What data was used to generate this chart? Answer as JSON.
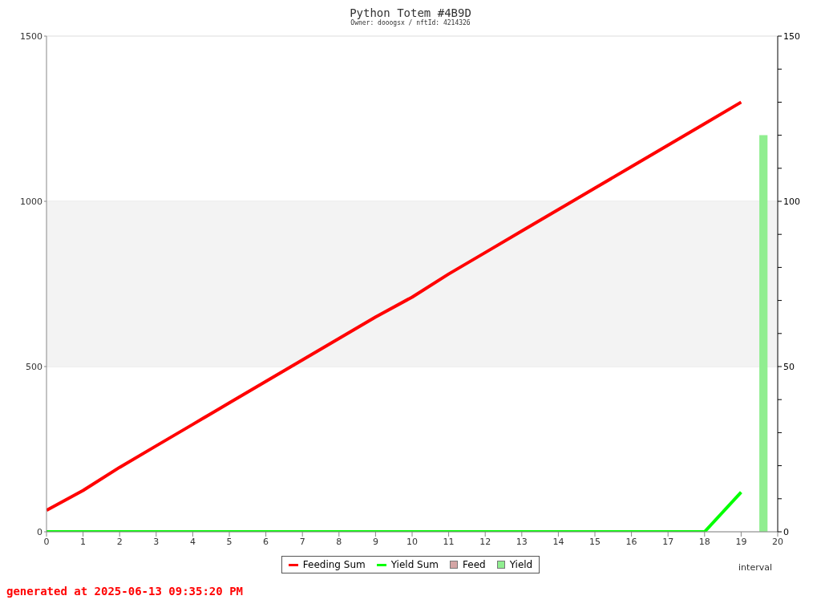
{
  "chart_data": {
    "type": "line",
    "title": "Python Totem #4B9D",
    "subtitle": "Owner: dooogsx / nftId: 4214326",
    "xlabel": "interval",
    "annotations": [
      "generated at 2025-06-13 09:35:20 PM"
    ],
    "x": [
      0,
      1,
      2,
      3,
      4,
      5,
      6,
      7,
      8,
      9,
      10,
      11,
      12,
      13,
      14,
      15,
      16,
      17,
      18,
      19
    ],
    "series": [
      {
        "name": "Feeding Sum",
        "color": "#ff0000",
        "values": [
          65,
          125,
          195,
          260,
          325,
          390,
          455,
          520,
          585,
          650,
          710,
          780,
          845,
          910,
          975,
          1040,
          1105,
          1170,
          1235,
          1300
        ]
      },
      {
        "name": "Yield Sum",
        "color": "#00ff00",
        "values": [
          0,
          0,
          0,
          0,
          0,
          0,
          0,
          0,
          0,
          0,
          0,
          0,
          0,
          0,
          0,
          0,
          0,
          0,
          0,
          120
        ]
      },
      {
        "name": "Feed",
        "type": "bar",
        "axis": "y2",
        "color": "#d4a5a5",
        "values": [
          null,
          null,
          null,
          null,
          null,
          null,
          null,
          null,
          null,
          null,
          null,
          null,
          null,
          null,
          null,
          null,
          null,
          null,
          null,
          null
        ]
      },
      {
        "name": "Yield",
        "type": "bar",
        "axis": "y2",
        "color": "#90ee90",
        "x": [
          19.5
        ],
        "values": [
          120
        ]
      }
    ],
    "xlim": [
      0,
      20
    ],
    "xticks": [
      0,
      1,
      2,
      3,
      4,
      5,
      6,
      7,
      8,
      9,
      10,
      11,
      12,
      13,
      14,
      15,
      16,
      17,
      18,
      19,
      20
    ],
    "ylim": [
      0,
      1500
    ],
    "yticks": [
      0,
      500,
      1000,
      1500
    ],
    "y2lim": [
      0,
      150
    ],
    "y2ticks": [
      0,
      {
        "value": 10,
        "label": null
      },
      {
        "value": 20,
        "label": null
      },
      {
        "value": 30,
        "label": null
      },
      {
        "value": 40,
        "label": null
      },
      50,
      {
        "value": 60,
        "label": null
      },
      {
        "value": 70,
        "label": null
      },
      {
        "value": 80,
        "label": null
      },
      {
        "value": 90,
        "label": null
      },
      100,
      {
        "value": 110,
        "label": null
      },
      {
        "value": 120,
        "label": null
      },
      {
        "value": 130,
        "label": null
      },
      {
        "value": 140,
        "label": null
      },
      150
    ],
    "bands": [
      {
        "axis": "y",
        "from": 500,
        "to": 1000,
        "color": "#f3f3f3"
      }
    ],
    "grid": "y",
    "legend": "bottom",
    "marker": "none",
    "line_style": "solid"
  }
}
